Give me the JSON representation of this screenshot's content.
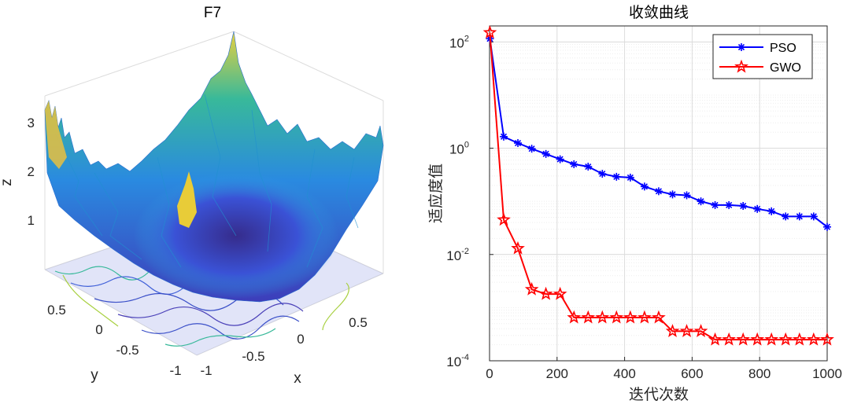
{
  "chart_data": [
    {
      "type": "surface3d",
      "title": "F7",
      "xlabel": "x",
      "ylabel": "y",
      "zlabel": "z",
      "x_ticks": [
        "-1",
        "-0.5",
        "0",
        "0.5"
      ],
      "y_ticks": [
        "-1",
        "-0.5",
        "0",
        "0.5"
      ],
      "z_ticks": [
        "1",
        "2",
        "3"
      ],
      "xlim": [
        -1,
        1
      ],
      "ylim": [
        -1,
        1
      ],
      "zlim": [
        0,
        3.8
      ],
      "colormap": "parula",
      "has_contour": true
    },
    {
      "type": "line",
      "title": "收敛曲线",
      "xlabel": "迭代次数",
      "ylabel": "适应度值",
      "xlim": [
        0,
        1000
      ],
      "ylim": [
        0.0001,
        200
      ],
      "yscale": "log",
      "grid": true,
      "x_ticks": [
        "0",
        "200",
        "400",
        "600",
        "800",
        "1000"
      ],
      "y_ticks": [
        {
          "base": "10",
          "exp": "-4",
          "value": 0.0001
        },
        {
          "base": "10",
          "exp": "-2",
          "value": 0.01
        },
        {
          "base": "10",
          "exp": "0",
          "value": 1
        },
        {
          "base": "10",
          "exp": "2",
          "value": 100
        }
      ],
      "legend_position": "top-right",
      "series": [
        {
          "name": "PSO",
          "color": "#0000ff",
          "marker": "asterisk",
          "x": [
            1,
            42,
            84,
            125,
            167,
            209,
            250,
            292,
            334,
            376,
            417,
            459,
            501,
            542,
            584,
            626,
            668,
            709,
            751,
            793,
            835,
            877,
            918,
            960,
            1000
          ],
          "y": [
            115,
            1.65,
            1.25,
            0.98,
            0.78,
            0.62,
            0.5,
            0.45,
            0.33,
            0.29,
            0.28,
            0.19,
            0.155,
            0.135,
            0.13,
            0.1,
            0.085,
            0.085,
            0.082,
            0.072,
            0.065,
            0.052,
            0.052,
            0.052,
            0.033
          ]
        },
        {
          "name": "GWO",
          "color": "#ff0000",
          "marker": "pentagram",
          "x": [
            1,
            42,
            84,
            125,
            167,
            209,
            250,
            292,
            334,
            376,
            417,
            459,
            501,
            542,
            584,
            626,
            668,
            709,
            751,
            793,
            835,
            877,
            918,
            960,
            1000
          ],
          "y": [
            150,
            0.045,
            0.013,
            0.0022,
            0.0018,
            0.0018,
            0.00065,
            0.00065,
            0.00065,
            0.00065,
            0.00065,
            0.00065,
            0.00065,
            0.00036,
            0.00036,
            0.00036,
            0.00025,
            0.00025,
            0.00025,
            0.00025,
            0.00025,
            0.00025,
            0.00025,
            0.00025,
            0.00025
          ]
        }
      ]
    }
  ]
}
